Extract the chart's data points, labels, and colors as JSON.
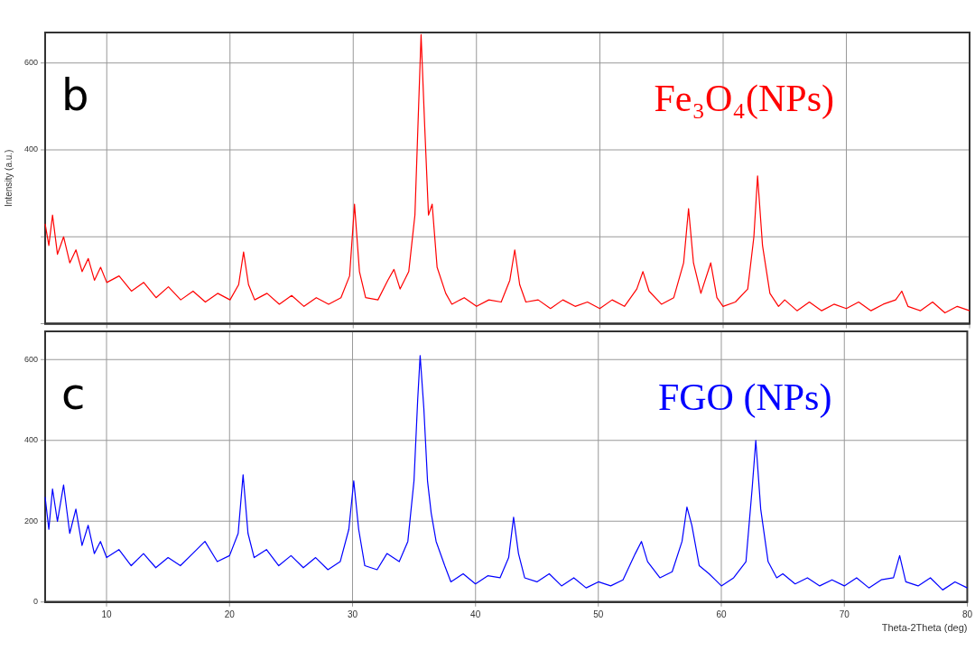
{
  "chart_data": [
    {
      "type": "line",
      "ylabel": "Intensity (a.u.)",
      "annotations": [
        "b"
      ],
      "xlim": [
        5,
        80
      ],
      "xticks": [
        10,
        20,
        30,
        40,
        50,
        60,
        70,
        80
      ],
      "ylim": [
        0,
        670
      ],
      "yticks": [
        {
          "value": 0,
          "label": null
        },
        {
          "value": 200,
          "label": null
        },
        400,
        600
      ],
      "grid": true,
      "legend": false,
      "marker": "none",
      "tick_labels": "y",
      "x": [
        5,
        5.3,
        5.6,
        6,
        6.5,
        7,
        7.5,
        8,
        8.5,
        9,
        9.5,
        10,
        11,
        12,
        13,
        14,
        15,
        16,
        17,
        18,
        19,
        20,
        20.7,
        21.1,
        21.5,
        22,
        23,
        24,
        25,
        26,
        27,
        28,
        29,
        29.7,
        30.1,
        30.5,
        31,
        32,
        32.8,
        33.3,
        33.8,
        34.5,
        35,
        35.3,
        35.5,
        35.8,
        36.1,
        36.4,
        36.8,
        37.5,
        38,
        39,
        40,
        41,
        42,
        42.7,
        43.1,
        43.5,
        44,
        45,
        46,
        47,
        48,
        49,
        50,
        51,
        52,
        53,
        53.5,
        54,
        55,
        56,
        56.8,
        57.2,
        57.6,
        58.2,
        59,
        59.5,
        60,
        61,
        62,
        62.5,
        62.8,
        63.2,
        63.8,
        64.5,
        65,
        66,
        67,
        68,
        69,
        70,
        71,
        72,
        73,
        74,
        74.5,
        75,
        76,
        77,
        78,
        79,
        80
      ],
      "series": [
        {
          "name": "Fe₃O₄(NPs)",
          "color": "#ff0000",
          "values": [
            230,
            180,
            250,
            160,
            200,
            140,
            170,
            120,
            150,
            100,
            130,
            95,
            110,
            75,
            95,
            60,
            85,
            55,
            75,
            50,
            70,
            55,
            90,
            165,
            90,
            55,
            70,
            45,
            65,
            40,
            60,
            45,
            60,
            110,
            275,
            120,
            60,
            55,
            100,
            125,
            80,
            120,
            250,
            500,
            665,
            450,
            250,
            275,
            130,
            70,
            45,
            60,
            40,
            55,
            50,
            100,
            170,
            90,
            50,
            55,
            35,
            55,
            40,
            50,
            35,
            55,
            40,
            80,
            120,
            75,
            45,
            60,
            140,
            265,
            140,
            70,
            140,
            60,
            40,
            50,
            80,
            200,
            340,
            180,
            70,
            40,
            55,
            30,
            50,
            30,
            45,
            35,
            50,
            30,
            45,
            55,
            75,
            40,
            30,
            50,
            25,
            40,
            30
          ]
        }
      ]
    },
    {
      "type": "line",
      "xlabel": "Theta-2Theta (deg)",
      "annotations": [
        "c"
      ],
      "xlim": [
        5,
        80
      ],
      "xticks": [
        10,
        20,
        30,
        40,
        50,
        60,
        70,
        80
      ],
      "ylim": [
        0,
        670
      ],
      "yticks": [
        0,
        200,
        400,
        600
      ],
      "grid": true,
      "legend": false,
      "marker": "none",
      "x": [
        5,
        5.3,
        5.6,
        6,
        6.5,
        7,
        7.5,
        8,
        8.5,
        9,
        9.5,
        10,
        11,
        12,
        13,
        14,
        15,
        16,
        17,
        18,
        19,
        20,
        20.7,
        21.1,
        21.5,
        22,
        23,
        24,
        25,
        26,
        27,
        28,
        29,
        29.7,
        30.1,
        30.5,
        31,
        32,
        32.8,
        33.3,
        33.8,
        34.5,
        35,
        35.3,
        35.5,
        35.8,
        36.1,
        36.4,
        36.8,
        37.5,
        38,
        39,
        40,
        41,
        42,
        42.7,
        43.1,
        43.5,
        44,
        45,
        46,
        47,
        48,
        49,
        50,
        51,
        52,
        53,
        53.5,
        54,
        55,
        56,
        56.8,
        57.2,
        57.6,
        58.2,
        59,
        59.5,
        60,
        61,
        62,
        62.5,
        62.8,
        63.2,
        63.8,
        64.5,
        65,
        66,
        67,
        68,
        69,
        70,
        71,
        72,
        73,
        74,
        74.5,
        75,
        76,
        77,
        78,
        79,
        80
      ],
      "series": [
        {
          "name": "FGO (NPs)",
          "color": "#0000ff",
          "values": [
            260,
            180,
            280,
            200,
            290,
            170,
            230,
            140,
            190,
            120,
            150,
            110,
            130,
            90,
            120,
            85,
            110,
            90,
            120,
            150,
            100,
            115,
            170,
            315,
            170,
            110,
            130,
            90,
            115,
            85,
            110,
            80,
            100,
            180,
            300,
            180,
            90,
            80,
            120,
            110,
            100,
            150,
            300,
            500,
            610,
            480,
            300,
            220,
            150,
            90,
            50,
            70,
            45,
            65,
            60,
            110,
            210,
            120,
            60,
            50,
            70,
            40,
            60,
            35,
            50,
            40,
            55,
            120,
            150,
            100,
            60,
            75,
            150,
            235,
            190,
            90,
            70,
            55,
            40,
            60,
            100,
            280,
            400,
            230,
            100,
            60,
            70,
            45,
            60,
            40,
            55,
            40,
            60,
            35,
            55,
            60,
            115,
            50,
            40,
            60,
            30,
            50,
            35
          ]
        }
      ]
    }
  ]
}
